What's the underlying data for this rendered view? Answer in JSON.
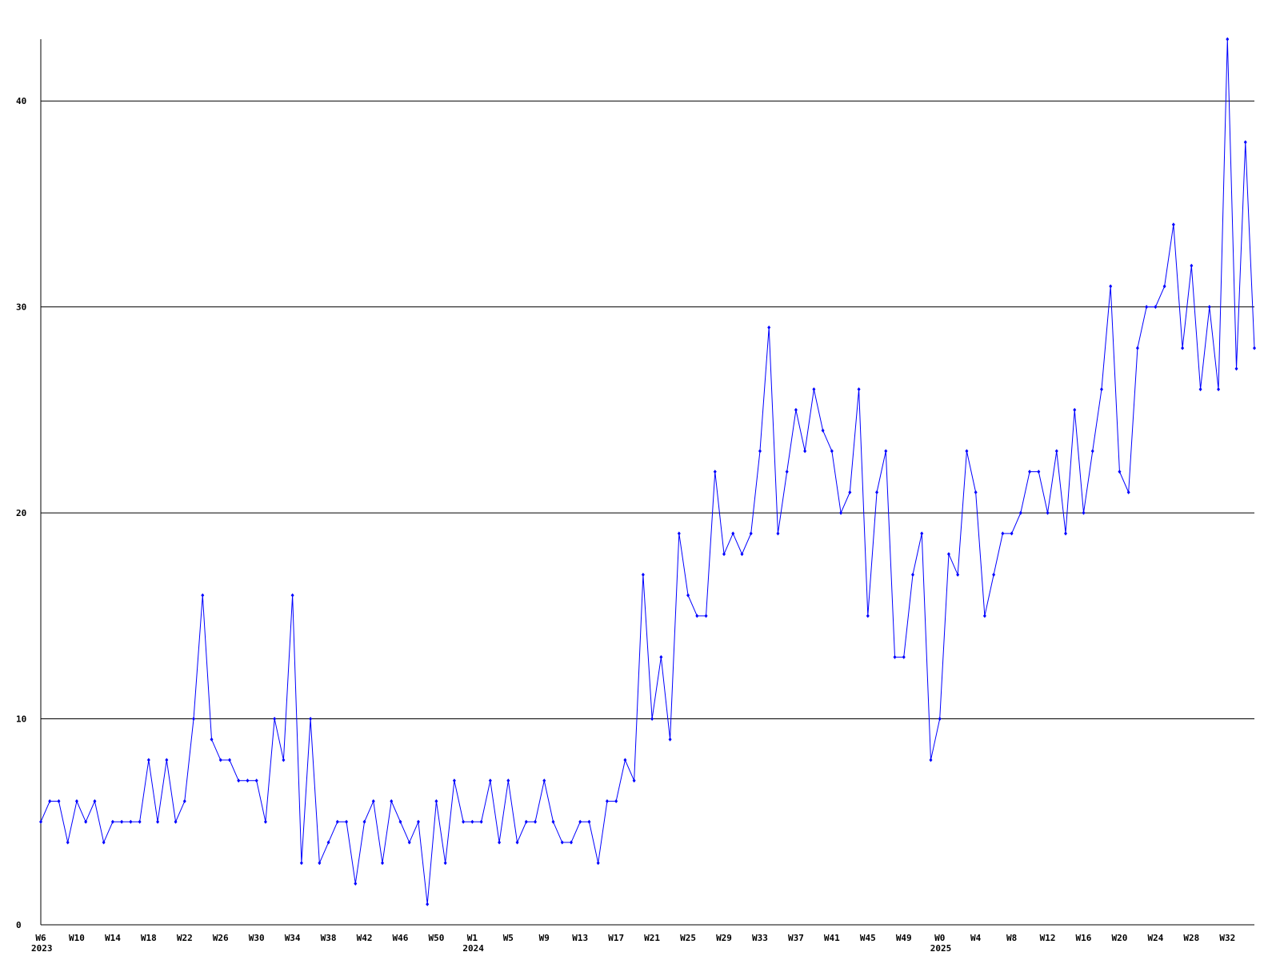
{
  "chart_data": {
    "type": "line",
    "categories": [
      "W6",
      null,
      null,
      null,
      "W10",
      null,
      null,
      null,
      "W14",
      null,
      null,
      null,
      "W18",
      null,
      null,
      null,
      "W22",
      null,
      null,
      null,
      "W26",
      null,
      null,
      null,
      "W30",
      null,
      null,
      null,
      "W34",
      null,
      null,
      null,
      "W38",
      null,
      null,
      null,
      "W42",
      null,
      null,
      null,
      "W46",
      null,
      null,
      null,
      "W50",
      null,
      null,
      null,
      "W1",
      null,
      null,
      null,
      "W5",
      null,
      null,
      null,
      "W9",
      null,
      null,
      null,
      "W13",
      null,
      null,
      null,
      "W17",
      null,
      null,
      null,
      "W21",
      null,
      null,
      null,
      "W25",
      null,
      null,
      null,
      "W29",
      null,
      null,
      null,
      "W33",
      null,
      null,
      null,
      "W37",
      null,
      null,
      null,
      "W41",
      null,
      null,
      null,
      "W45",
      null,
      null,
      null,
      "W49",
      null,
      null,
      null,
      "W0",
      null,
      null,
      null,
      "W4",
      null,
      null,
      null,
      "W8",
      null,
      null,
      null,
      "W12",
      null,
      null,
      null,
      "W16",
      null,
      null,
      null,
      "W20",
      null,
      null,
      null,
      "W24",
      null,
      null,
      null,
      "W28",
      null,
      null,
      null,
      "W32",
      null,
      null,
      null
    ],
    "year_labels": [
      {
        "index": 0,
        "label": "2023"
      },
      {
        "index": 48,
        "label": "2024"
      },
      {
        "index": 100,
        "label": "2025"
      }
    ],
    "values": [
      5,
      6,
      6,
      4,
      6,
      5,
      6,
      4,
      5,
      5,
      5,
      5,
      8,
      5,
      8,
      5,
      6,
      10,
      16,
      9,
      8,
      8,
      7,
      7,
      7,
      5,
      10,
      8,
      16,
      3,
      10,
      3,
      4,
      5,
      5,
      2,
      5,
      6,
      3,
      6,
      5,
      4,
      5,
      1,
      6,
      3,
      7,
      5,
      5,
      5,
      7,
      4,
      7,
      4,
      5,
      5,
      7,
      5,
      4,
      4,
      5,
      5,
      3,
      6,
      6,
      8,
      7,
      17,
      10,
      13,
      9,
      19,
      16,
      15,
      15,
      22,
      18,
      19,
      18,
      19,
      23,
      29,
      19,
      22,
      25,
      23,
      26,
      24,
      23,
      20,
      21,
      26,
      15,
      21,
      23,
      13,
      13,
      17,
      19,
      8,
      10,
      18,
      17,
      23,
      21,
      15,
      17,
      19,
      19,
      20,
      22,
      22,
      20,
      23,
      19,
      25,
      20,
      23,
      26,
      31,
      22,
      21,
      28,
      30,
      30,
      31,
      34,
      28,
      32,
      26,
      30,
      26,
      43,
      27,
      38,
      28
    ],
    "color": "#0000ff",
    "ylim": [
      0,
      43
    ],
    "yticks": [
      0,
      10,
      20,
      30,
      40
    ],
    "grid": true
  }
}
